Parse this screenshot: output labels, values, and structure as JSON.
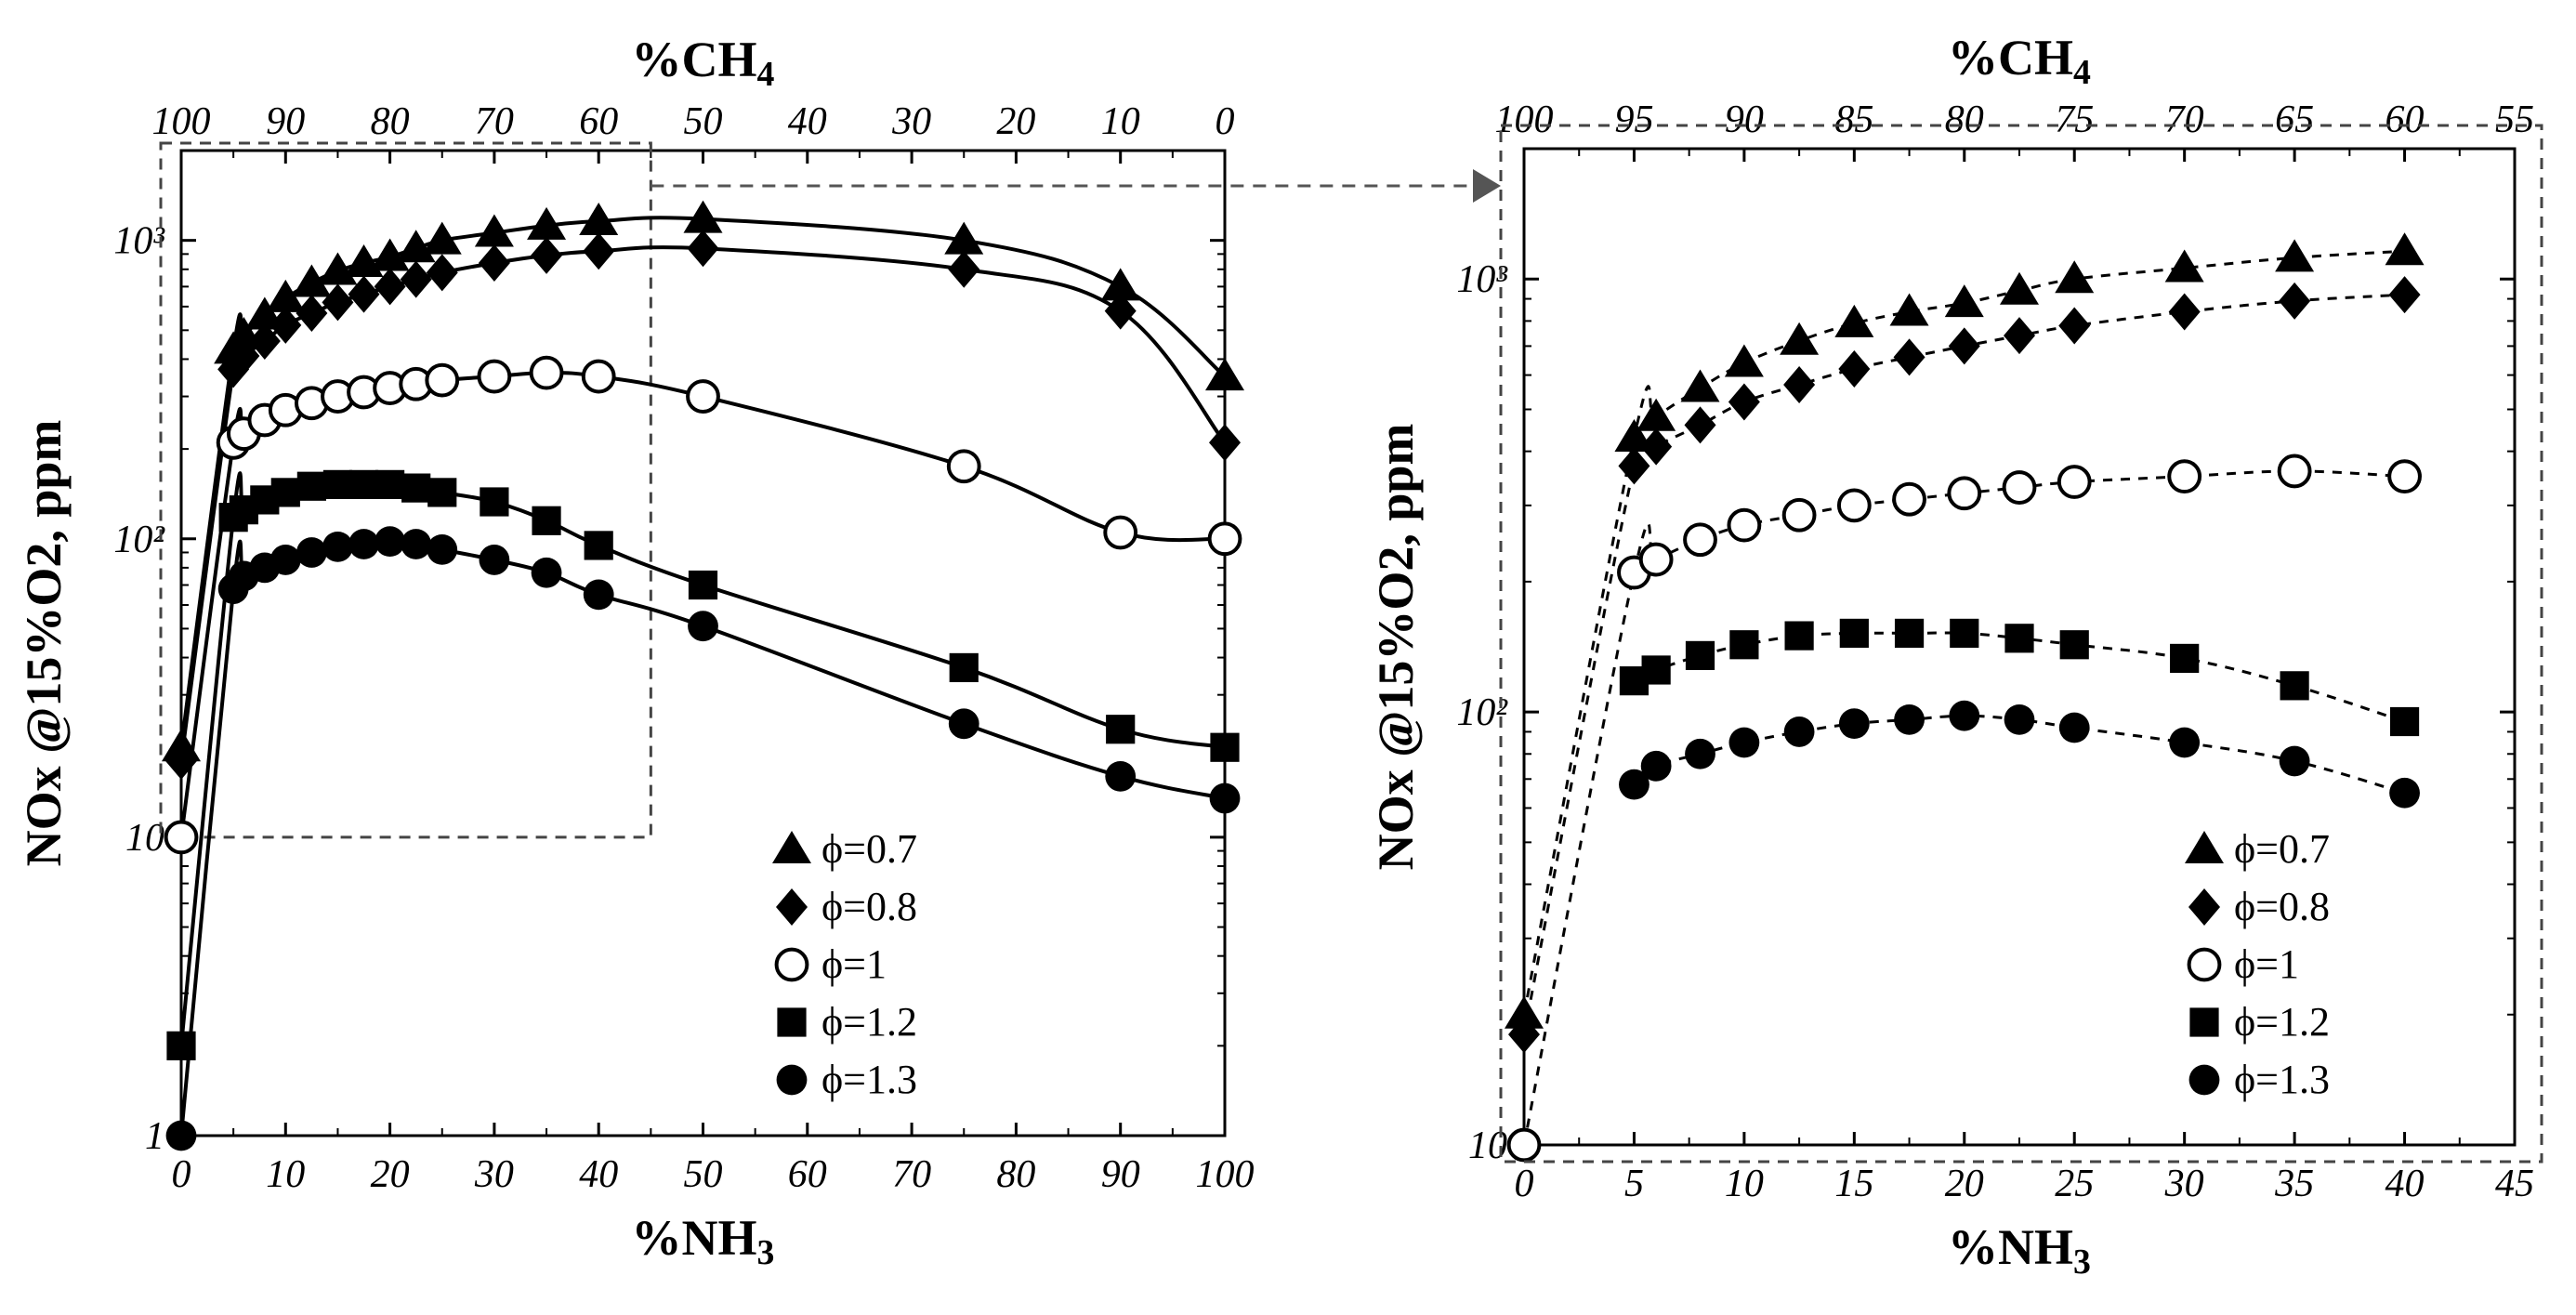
{
  "figure": {
    "arrow_color": "#555555",
    "marker_color": "#000000"
  },
  "chart_data": [
    {
      "type": "line",
      "scale": "log",
      "curve_style": "solid",
      "xlabel": "%NH3",
      "ylabel": "NOx @15%O2, ppm",
      "top_xlabel": "%CH4",
      "xlim": [
        0,
        100
      ],
      "ylim": [
        1,
        2000
      ],
      "x_ticks": [
        0,
        10,
        20,
        30,
        40,
        50,
        60,
        70,
        80,
        90,
        100
      ],
      "x_tick_labels": [
        "0",
        "10",
        "20",
        "30",
        "40",
        "50",
        "60",
        "70",
        "80",
        "90",
        "100"
      ],
      "top_tick_labels": [
        "100",
        "90",
        "80",
        "70",
        "60",
        "50",
        "40",
        "30",
        "20",
        "10",
        "0"
      ],
      "y_ticks": [
        1,
        10,
        100,
        1000
      ],
      "y_tick_labels": [
        "1",
        "10",
        "10²",
        "10³"
      ],
      "legend_position": "lower-right",
      "zoom_box": {
        "x": [
          0,
          45
        ],
        "y": [
          10,
          2000
        ]
      },
      "series": [
        {
          "name": "ϕ=0.7",
          "marker": "triangle",
          "x": [
            0,
            5,
            6,
            8,
            10,
            12.5,
            15,
            17.5,
            20,
            22.5,
            25,
            30,
            35,
            40,
            50,
            75,
            90,
            100
          ],
          "y": [
            20,
            430,
            480,
            560,
            640,
            720,
            790,
            840,
            880,
            940,
            1000,
            1060,
            1120,
            1160,
            1180,
            1000,
            700,
            350
          ]
        },
        {
          "name": "ϕ=0.8",
          "marker": "diamond",
          "x": [
            0,
            5,
            6,
            8,
            10,
            12.5,
            15,
            17.5,
            20,
            22.5,
            25,
            30,
            35,
            40,
            50,
            75,
            90,
            100
          ],
          "y": [
            18,
            370,
            410,
            460,
            520,
            570,
            620,
            660,
            700,
            740,
            780,
            840,
            890,
            920,
            940,
            800,
            580,
            210
          ]
        },
        {
          "name": "ϕ=1",
          "marker": "circle-open",
          "x": [
            0,
            5,
            6,
            8,
            10,
            12.5,
            15,
            17.5,
            20,
            22.5,
            25,
            30,
            35,
            40,
            50,
            75,
            90,
            100
          ],
          "y": [
            10,
            210,
            225,
            250,
            270,
            285,
            300,
            310,
            320,
            330,
            340,
            350,
            360,
            350,
            300,
            175,
            105,
            100
          ]
        },
        {
          "name": "ϕ=1.2",
          "marker": "square",
          "x": [
            0,
            5,
            6,
            8,
            10,
            12.5,
            15,
            17.5,
            20,
            22.5,
            25,
            30,
            35,
            40,
            50,
            75,
            90,
            100
          ],
          "y": [
            2,
            118,
            125,
            135,
            143,
            150,
            152,
            152,
            152,
            148,
            143,
            133,
            115,
            95,
            70,
            37,
            23,
            20
          ]
        },
        {
          "name": "ϕ=1.3",
          "marker": "circle",
          "x": [
            0,
            5,
            6,
            8,
            10,
            12.5,
            15,
            17.5,
            20,
            22.5,
            25,
            30,
            35,
            40,
            50,
            75,
            90,
            100
          ],
          "y": [
            1,
            68,
            75,
            80,
            85,
            90,
            94,
            96,
            98,
            96,
            92,
            85,
            77,
            65,
            51,
            24,
            16,
            13.5
          ]
        }
      ]
    },
    {
      "type": "line",
      "scale": "log",
      "curve_style": "dashed",
      "xlabel": "%NH3",
      "ylabel": "NOx @15%O2, ppm",
      "top_xlabel": "%CH4",
      "xlim": [
        0,
        45
      ],
      "ylim": [
        10,
        2000
      ],
      "x_ticks": [
        0,
        5,
        10,
        15,
        20,
        25,
        30,
        35,
        40,
        45
      ],
      "x_tick_labels": [
        "0",
        "5",
        "10",
        "15",
        "20",
        "25",
        "30",
        "35",
        "40",
        "45"
      ],
      "top_tick_labels": [
        "100",
        "95",
        "90",
        "85",
        "80",
        "75",
        "70",
        "65",
        "60",
        "55"
      ],
      "y_ticks": [
        10,
        100,
        1000
      ],
      "y_tick_labels": [
        "10",
        "10²",
        "10³"
      ],
      "legend_position": "lower-right",
      "series": [
        {
          "name": "ϕ=0.7",
          "marker": "triangle",
          "x": [
            0,
            5,
            6,
            8,
            10,
            12.5,
            15,
            17.5,
            20,
            22.5,
            25,
            30,
            35,
            40
          ],
          "y": [
            20,
            430,
            480,
            560,
            640,
            720,
            790,
            840,
            880,
            940,
            1000,
            1060,
            1120,
            1160
          ]
        },
        {
          "name": "ϕ=0.8",
          "marker": "diamond",
          "x": [
            0,
            5,
            6,
            8,
            10,
            12.5,
            15,
            17.5,
            20,
            22.5,
            25,
            30,
            35,
            40
          ],
          "y": [
            18,
            370,
            410,
            460,
            520,
            570,
            620,
            660,
            700,
            740,
            780,
            840,
            890,
            920
          ]
        },
        {
          "name": "ϕ=1",
          "marker": "circle-open",
          "x": [
            0,
            5,
            6,
            8,
            10,
            12.5,
            15,
            17.5,
            20,
            22.5,
            25,
            30,
            35,
            40
          ],
          "y": [
            10,
            210,
            225,
            250,
            270,
            285,
            300,
            310,
            320,
            330,
            340,
            350,
            360,
            350
          ]
        },
        {
          "name": "ϕ=1.2",
          "marker": "square",
          "x": [
            5,
            6,
            8,
            10,
            12.5,
            15,
            17.5,
            20,
            22.5,
            25,
            30,
            35,
            40
          ],
          "y": [
            118,
            125,
            135,
            143,
            150,
            152,
            152,
            152,
            148,
            143,
            133,
            115,
            95
          ]
        },
        {
          "name": "ϕ=1.3",
          "marker": "circle",
          "x": [
            5,
            6,
            8,
            10,
            12.5,
            15,
            17.5,
            20,
            22.5,
            25,
            30,
            35,
            40
          ],
          "y": [
            68,
            75,
            80,
            85,
            90,
            94,
            96,
            98,
            96,
            92,
            85,
            77,
            65
          ]
        }
      ]
    }
  ]
}
